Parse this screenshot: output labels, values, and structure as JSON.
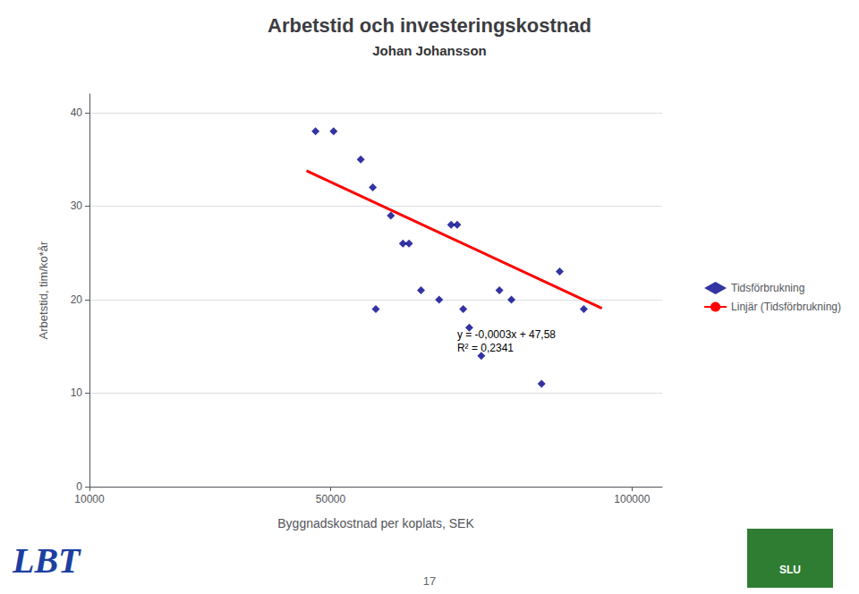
{
  "chart_data": {
    "type": "scatter",
    "title": "Arbetstid och investeringskostnad",
    "subtitle": "Johan Johansson",
    "xlabel": "Byggnadskostnad per koplats, SEK",
    "ylabel": "Arbetstid, tim/ko*år",
    "xlim": [
      10000,
      105000
    ],
    "xticks": [
      10000,
      50000,
      100000
    ],
    "ylim": [
      0,
      42
    ],
    "yticks": [
      0,
      10,
      20,
      30,
      40
    ],
    "grid": "y",
    "legend": "right",
    "series": [
      {
        "name": "Tidsförbrukning",
        "type": "scatter",
        "color": "#00008B",
        "marker": "diamond",
        "x": [
          47500,
          50500,
          55000,
          57000,
          57500,
          60000,
          62000,
          63000,
          65000,
          68000,
          70000,
          71000,
          72000,
          73000,
          75000,
          78000,
          80000,
          85000,
          88000,
          92000
        ],
        "values": [
          38,
          38,
          35,
          32,
          19,
          29,
          26,
          26,
          21,
          20,
          28,
          28,
          19,
          17,
          14,
          21,
          20,
          11,
          23,
          19
        ]
      },
      {
        "name": "Linjär (Tidsförbrukning)",
        "type": "line",
        "color": "#FF0000",
        "x": [
          46000,
          95000
        ],
        "values": [
          33.78,
          19.08
        ]
      }
    ],
    "annotations": [
      {
        "x": 71000,
        "y": 17,
        "text": "y = -0,0003x + 47,58\nR² = 0,2341"
      }
    ],
    "page_number": "17",
    "logos": [
      {
        "text": "LBT",
        "color": "#1C3FA0"
      },
      {
        "text": "SLU",
        "color": "#2E7D32"
      }
    ]
  }
}
